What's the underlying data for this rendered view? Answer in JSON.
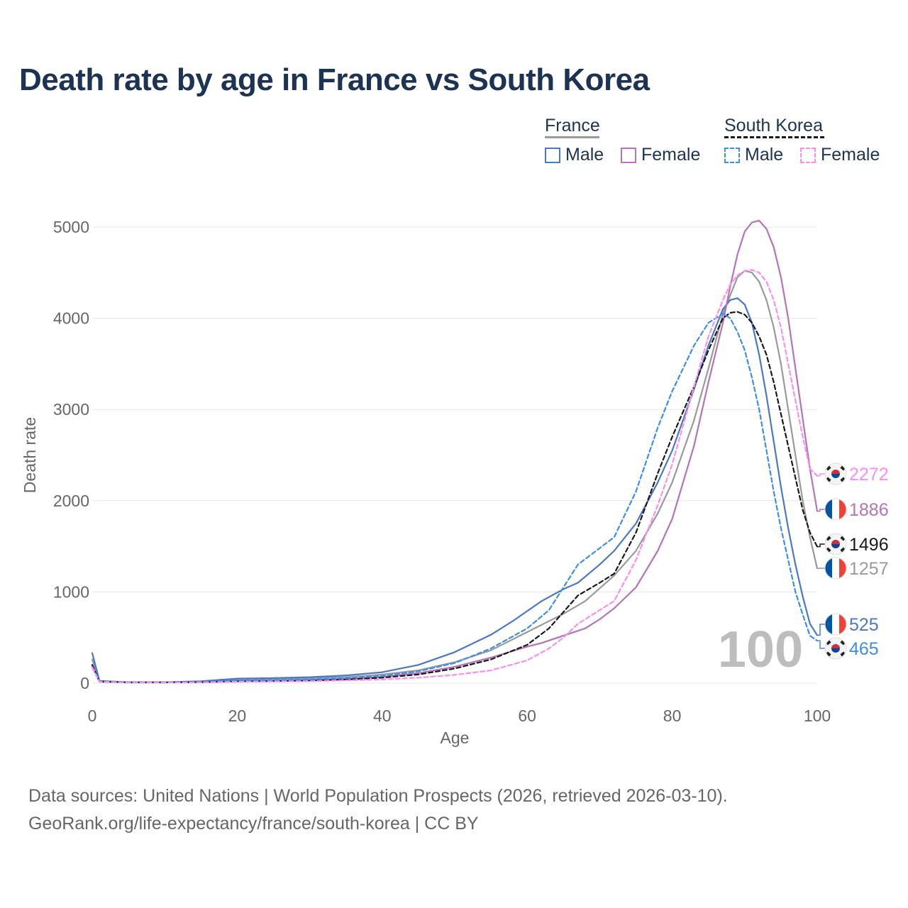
{
  "title": "Death rate by age in France vs South Korea",
  "legend": {
    "france_title": "France",
    "korea_title": "South Korea",
    "france_male": "Male",
    "france_female": "Female",
    "korea_male": "Male",
    "korea_female": "Female"
  },
  "colors": {
    "france_male": "#4a78c4",
    "france_female": "#b474b8",
    "france_total": "#9a9a9a",
    "korea_male": "#3d8ee8",
    "korea_female": "#f98ef0",
    "korea_total": "#1a1a1a",
    "grid": "#e6e6e6",
    "axis_text": "#666666",
    "big_year": "#bdbdbd",
    "title": "#1d3354"
  },
  "big_label": "100",
  "source": {
    "line1": "Data sources: United Nations | World Population Prospects (2026, retrieved 2026-03-10).",
    "line2": "GeoRank.org/life-expectancy/france/south-korea | CC BY"
  },
  "chart_data": {
    "type": "line",
    "title": "Death rate by age in France vs South Korea",
    "xlabel": "Age",
    "ylabel": "Death rate",
    "xlim": [
      0,
      100
    ],
    "ylim": [
      0,
      5000
    ],
    "xticks": [
      0,
      20,
      40,
      60,
      80,
      100
    ],
    "yticks": [
      0,
      1000,
      2000,
      3000,
      4000,
      5000
    ],
    "grid": true,
    "series": [
      {
        "name": "France Total",
        "country": "France",
        "flag": "france",
        "color_key": "france_total",
        "dashed": false,
        "end_label": "1257",
        "x": [
          0,
          1,
          5,
          10,
          15,
          20,
          25,
          30,
          35,
          40,
          45,
          50,
          55,
          60,
          65,
          68,
          70,
          72,
          75,
          78,
          80,
          83,
          85,
          87,
          89,
          90,
          91,
          92,
          93,
          94,
          95,
          96,
          97,
          98,
          99,
          100
        ],
        "y": [
          260,
          20,
          10,
          10,
          15,
          40,
          45,
          55,
          65,
          95,
          140,
          230,
          360,
          560,
          760,
          900,
          1040,
          1180,
          1450,
          1860,
          2200,
          2880,
          3450,
          4050,
          4450,
          4520,
          4500,
          4400,
          4200,
          3900,
          3500,
          3000,
          2500,
          2000,
          1600,
          1257
        ]
      },
      {
        "name": "France Male",
        "country": "France",
        "flag": "france",
        "color_key": "france_male",
        "dashed": false,
        "end_label": "525",
        "x": [
          0,
          1,
          5,
          10,
          15,
          20,
          25,
          30,
          35,
          40,
          45,
          50,
          55,
          58,
          60,
          62,
          65,
          67,
          70,
          72,
          75,
          78,
          80,
          83,
          85,
          87,
          88,
          89,
          90,
          91,
          92,
          93,
          94,
          95,
          96,
          97,
          98,
          99,
          100
        ],
        "y": [
          330,
          25,
          10,
          10,
          20,
          50,
          55,
          65,
          85,
          120,
          200,
          340,
          530,
          680,
          790,
          900,
          1030,
          1100,
          1300,
          1450,
          1750,
          2200,
          2550,
          3220,
          3700,
          4100,
          4200,
          4220,
          4150,
          3950,
          3600,
          3150,
          2650,
          2150,
          1700,
          1300,
          950,
          650,
          525
        ]
      },
      {
        "name": "France Female",
        "country": "France",
        "flag": "france",
        "color_key": "france_female",
        "dashed": false,
        "end_label": "1886",
        "x": [
          0,
          1,
          5,
          10,
          15,
          20,
          25,
          30,
          35,
          40,
          45,
          50,
          55,
          60,
          62,
          65,
          68,
          70,
          72,
          75,
          78,
          80,
          83,
          85,
          87,
          88,
          89,
          90,
          91,
          92,
          93,
          94,
          95,
          96,
          97,
          98,
          99,
          100
        ],
        "y": [
          190,
          15,
          8,
          8,
          10,
          25,
          28,
          35,
          45,
          70,
          110,
          180,
          280,
          400,
          440,
          520,
          600,
          700,
          820,
          1050,
          1450,
          1800,
          2600,
          3300,
          3950,
          4350,
          4700,
          4950,
          5050,
          5070,
          4980,
          4780,
          4450,
          4000,
          3450,
          2900,
          2350,
          1886
        ]
      },
      {
        "name": "South Korea Total",
        "country": "South Korea",
        "flag": "korea",
        "color_key": "korea_total",
        "dashed": true,
        "end_label": "1496",
        "x": [
          0,
          1,
          5,
          10,
          15,
          20,
          25,
          30,
          35,
          40,
          45,
          50,
          55,
          60,
          63,
          65,
          67,
          70,
          72,
          75,
          78,
          80,
          83,
          85,
          87,
          88,
          89,
          90,
          91,
          92,
          93,
          94,
          95,
          96,
          97,
          98,
          99,
          100
        ],
        "y": [
          200,
          18,
          8,
          8,
          10,
          20,
          22,
          28,
          40,
          60,
          95,
          160,
          260,
          420,
          600,
          780,
          960,
          1100,
          1200,
          1650,
          2300,
          2700,
          3250,
          3650,
          4000,
          4060,
          4070,
          4040,
          3950,
          3800,
          3600,
          3300,
          2950,
          2600,
          2250,
          1900,
          1650,
          1496
        ]
      },
      {
        "name": "South Korea Male",
        "country": "South Korea",
        "flag": "korea",
        "color_key": "korea_male",
        "dashed": true,
        "end_label": "465",
        "x": [
          0,
          1,
          5,
          10,
          15,
          20,
          25,
          30,
          35,
          40,
          45,
          50,
          55,
          60,
          63,
          65,
          67,
          70,
          72,
          75,
          78,
          80,
          83,
          85,
          87,
          88,
          89,
          90,
          91,
          92,
          93,
          94,
          95,
          96,
          97,
          98,
          99,
          100
        ],
        "y": [
          180,
          20,
          8,
          8,
          12,
          28,
          32,
          40,
          55,
          80,
          130,
          220,
          380,
          600,
          800,
          1050,
          1300,
          1480,
          1600,
          2100,
          2800,
          3200,
          3700,
          3950,
          4050,
          4000,
          3850,
          3650,
          3350,
          3000,
          2550,
          2100,
          1700,
          1350,
          1000,
          750,
          520,
          465
        ]
      },
      {
        "name": "South Korea Female",
        "country": "South Korea",
        "flag": "korea",
        "color_key": "korea_female",
        "dashed": true,
        "end_label": "2272",
        "x": [
          0,
          1,
          5,
          10,
          15,
          20,
          25,
          30,
          35,
          40,
          45,
          50,
          55,
          60,
          63,
          65,
          67,
          70,
          72,
          75,
          78,
          80,
          83,
          85,
          87,
          88,
          89,
          90,
          91,
          92,
          93,
          94,
          95,
          96,
          97,
          98,
          99,
          100
        ],
        "y": [
          170,
          15,
          6,
          6,
          8,
          15,
          18,
          22,
          30,
          40,
          60,
          90,
          140,
          250,
          380,
          500,
          650,
          800,
          900,
          1350,
          1950,
          2400,
          3250,
          3800,
          4200,
          4370,
          4470,
          4520,
          4530,
          4500,
          4400,
          4200,
          3900,
          3500,
          3100,
          2700,
          2350,
          2272
        ]
      }
    ],
    "end_labels_order": [
      "2272",
      "1886",
      "1496",
      "1257",
      "525",
      "465"
    ]
  }
}
